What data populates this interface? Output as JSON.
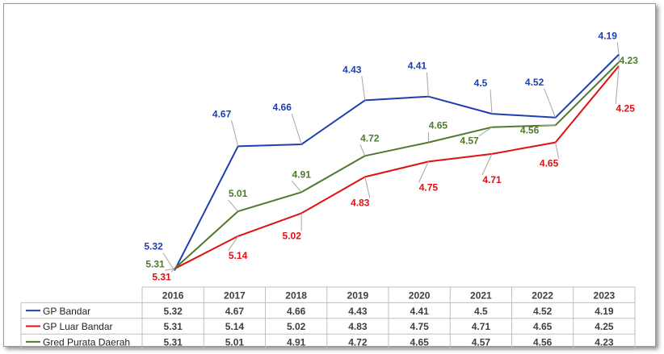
{
  "chart_data": {
    "type": "line",
    "title": "",
    "xlabel": "",
    "ylabel": "",
    "categories": [
      "2016",
      "2017",
      "2018",
      "2019",
      "2020",
      "2021",
      "2022",
      "2023"
    ],
    "y_axis_inverted": true,
    "grid": false,
    "legend": "data-table-bottom",
    "series": [
      {
        "name": "GP Bandar",
        "color": "#1f3fb0",
        "values": [
          5.32,
          4.67,
          4.66,
          4.43,
          4.41,
          4.5,
          4.52,
          4.19
        ]
      },
      {
        "name": "GP Luar Bandar",
        "color": "#e01010",
        "values": [
          5.31,
          5.14,
          5.02,
          4.83,
          4.75,
          4.71,
          4.65,
          4.25
        ]
      },
      {
        "name": "Gred Purata Daerah",
        "color": "#4f7a2e",
        "values": [
          5.31,
          5.01,
          4.91,
          4.72,
          4.65,
          4.57,
          4.56,
          4.23
        ]
      }
    ]
  }
}
